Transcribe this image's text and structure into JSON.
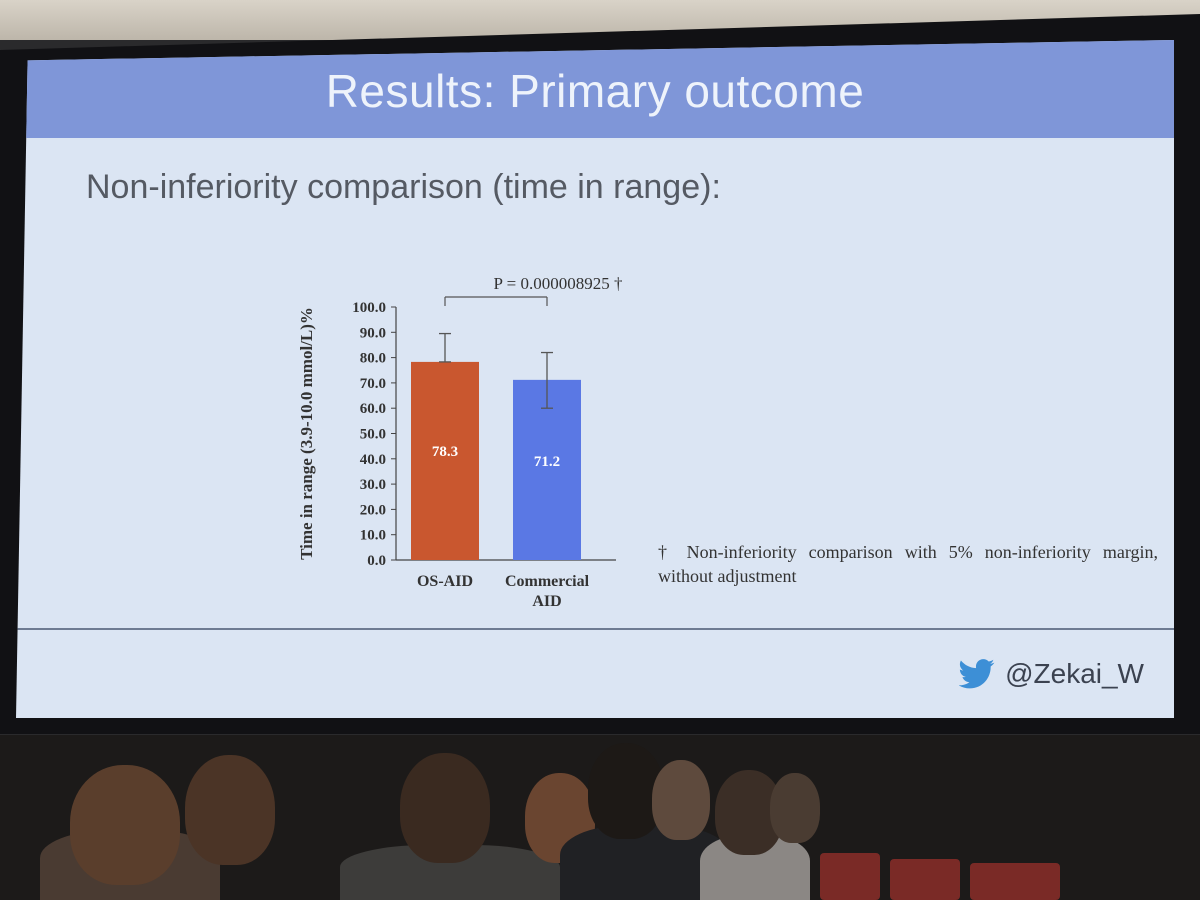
{
  "slide": {
    "title": "Results: Primary outcome",
    "subtitle": "Non-inferiority comparison (time in range):",
    "footnote": "† Non-inferiority comparison with 5% non-inferiority margin, without adjustment",
    "handle": "@Zekai_W",
    "handle_icon": "twitter-bird-icon"
  },
  "chart_data": {
    "type": "bar",
    "ylabel": "Time in range (3.9-10.0 mmol/L)%",
    "xlabel": "",
    "ylim": [
      0,
      100
    ],
    "yticks": [
      0.0,
      10.0,
      20.0,
      30.0,
      40.0,
      50.0,
      60.0,
      70.0,
      80.0,
      90.0,
      100.0
    ],
    "ytick_labels": [
      "0.0",
      "10.0",
      "20.0",
      "30.0",
      "40.0",
      "50.0",
      "60.0",
      "70.0",
      "80.0",
      "90.0",
      "100.0"
    ],
    "categories": [
      [
        "OS-AID"
      ],
      [
        "Commercial",
        "AID"
      ]
    ],
    "values": [
      78.3,
      71.2
    ],
    "value_labels": [
      "78.3",
      "71.2"
    ],
    "error_upper": [
      89.5,
      82.0
    ],
    "error_lower": [
      78.3,
      60.0
    ],
    "colors": [
      "#c9572f",
      "#5a78e4"
    ],
    "annotation": "P = 0.000008925 †",
    "grid": false,
    "legend": "none"
  }
}
